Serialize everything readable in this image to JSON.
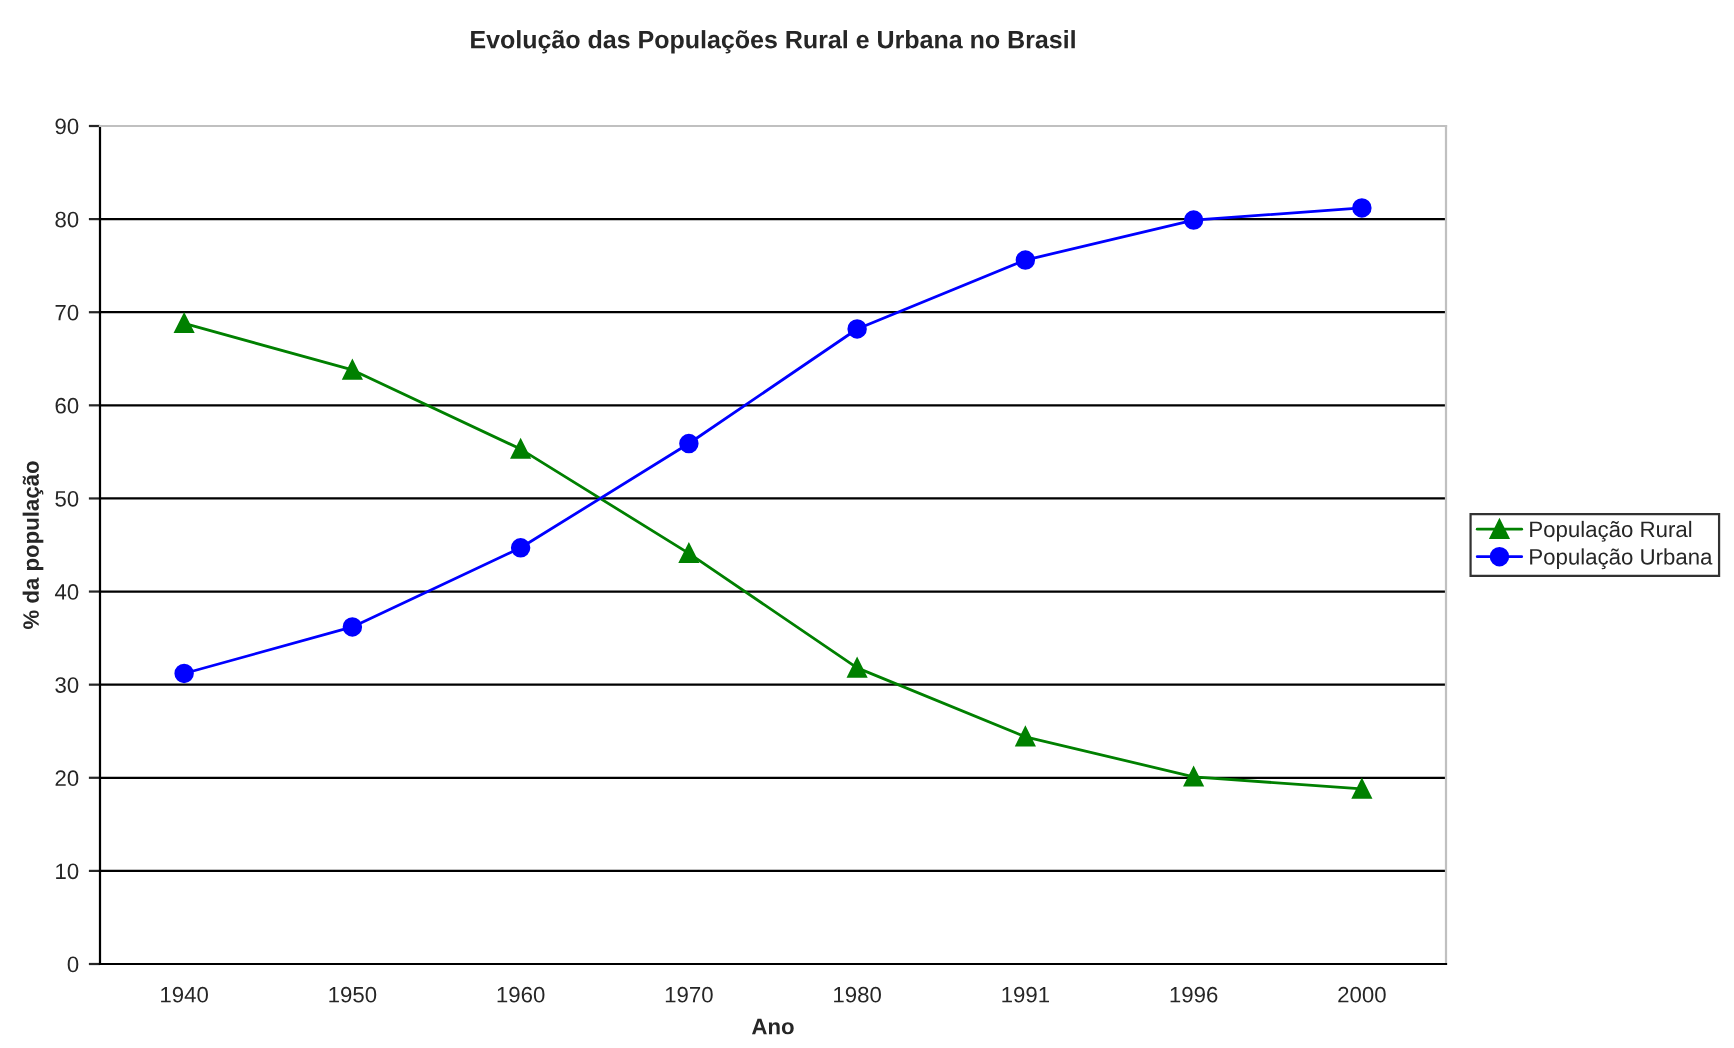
{
  "chart_data": {
    "type": "line",
    "title": "Evolução das Populações Rural e Urbana no Brasil",
    "xlabel": "Ano",
    "ylabel": "% da população",
    "categories": [
      "1940",
      "1950",
      "1960",
      "1970",
      "1980",
      "1991",
      "1996",
      "2000"
    ],
    "series": [
      {
        "name": "População Rural",
        "color": "#008000",
        "marker": "triangle",
        "values": [
          68.8,
          63.8,
          55.3,
          44.1,
          31.8,
          24.4,
          20.1,
          18.8
        ]
      },
      {
        "name": "População Urbana",
        "color": "#0000ff",
        "marker": "circle",
        "values": [
          31.2,
          36.2,
          44.7,
          55.9,
          68.2,
          75.6,
          79.9,
          81.2
        ]
      }
    ],
    "ylim": [
      0,
      90
    ],
    "yticks": [
      0,
      10,
      20,
      30,
      40,
      50,
      60,
      70,
      80,
      90
    ],
    "grid": "y",
    "legend": "right",
    "line_style": "solid"
  }
}
